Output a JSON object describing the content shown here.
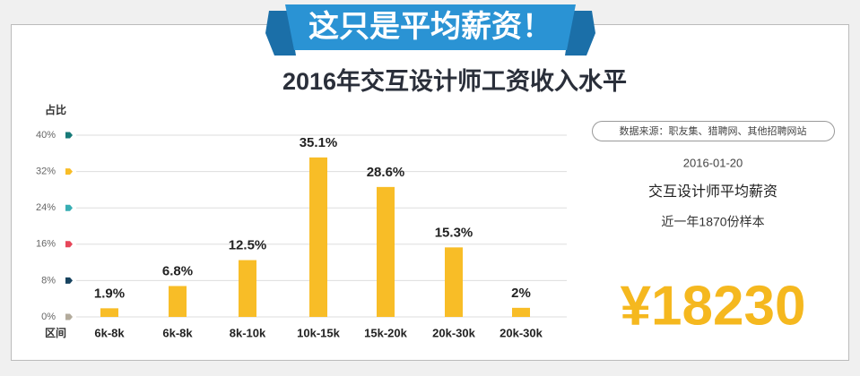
{
  "banner": "这只是平均薪资！",
  "chart_data": {
    "type": "bar",
    "title": "2016年交互设计师工资收入水平",
    "y_label": "占比",
    "x_label": "区间",
    "categories": [
      "6k-8k",
      "6k-8k",
      "8k-10k",
      "10k-15k",
      "15k-20k",
      "20k-30k",
      "20k-30k"
    ],
    "values": [
      1.9,
      6.8,
      12.5,
      35.1,
      28.6,
      15.3,
      2
    ],
    "value_labels": [
      "1.9%",
      "6.8%",
      "12.5%",
      "35.1%",
      "28.6%",
      "15.3%",
      "2%"
    ],
    "color": "#f8bd27",
    "ylim": [
      0,
      40
    ],
    "yticks": [
      {
        "value": 0,
        "label": "0%"
      },
      {
        "value": 8,
        "label": "8%"
      },
      {
        "value": 16,
        "label": "16%"
      },
      {
        "value": 24,
        "label": "24%"
      },
      {
        "value": 32,
        "label": "32%"
      },
      {
        "value": 40,
        "label": "40%"
      }
    ],
    "tick_marker_colors": [
      "#b3ab9c",
      "#17435f",
      "#e6475a",
      "#38aeb3",
      "#f8bd27",
      "#177a78"
    ],
    "grid": true
  },
  "panel": {
    "source": "数据来源：职友集、猎聘网、其他招聘网站",
    "date": "2016-01-20",
    "subject": "交互设计师平均薪资",
    "sample": "近一年1870份样本",
    "salary": "¥18230"
  }
}
